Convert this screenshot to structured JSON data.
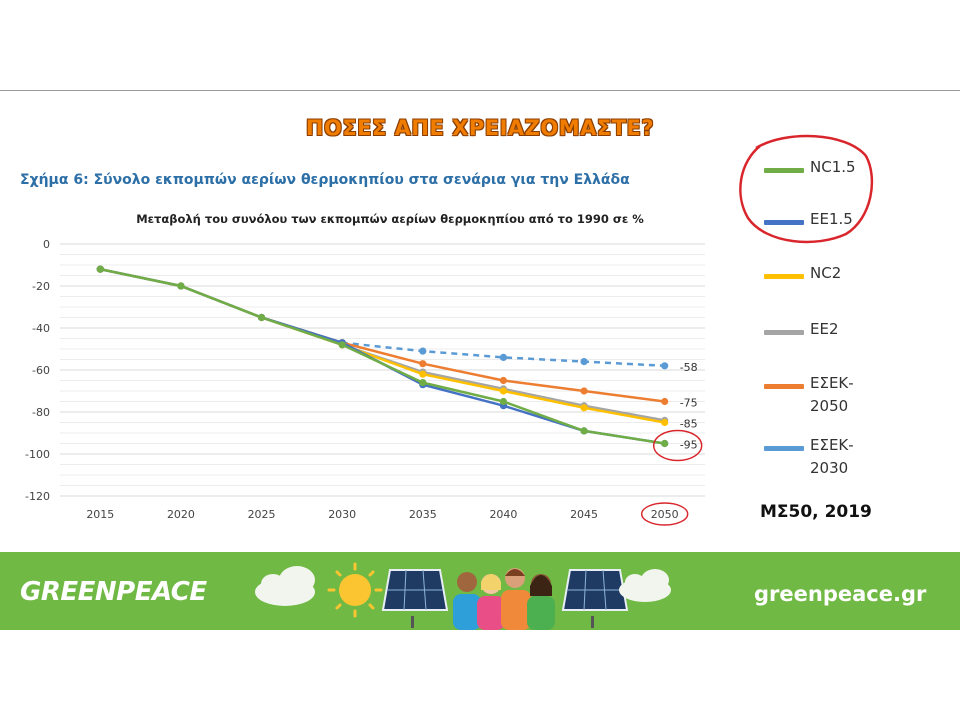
{
  "slide": {
    "title": "ΠΟΣΕΣ ΑΠΕ ΧΡΕΙΑΖΟΜΑΣΤΕ?",
    "figure_caption": "Σχήμα 6: Σύνολο εκπομπών αερίων θερμοκηπίου στα σενάρια για την Ελλάδα",
    "source": "ΜΣ50, 2019",
    "highlight_color": "#d9262c"
  },
  "footer": {
    "logo": "GREENPEACE",
    "url": "greenpeace.gr",
    "background": "#70b944"
  },
  "chart_data": {
    "type": "line",
    "title": "Μεταβολή του συνόλου των εκπομπών αερίων θερμοκηπίου από το 1990 σε %",
    "xlabel": "",
    "ylabel": "",
    "x": [
      2015,
      2020,
      2025,
      2030,
      2035,
      2040,
      2045,
      2050
    ],
    "ylim": [
      -120,
      0
    ],
    "yticks": [
      0,
      -20,
      -40,
      -60,
      -80,
      -100,
      -120
    ],
    "grid": true,
    "legend_position": "right",
    "series": [
      {
        "name": "NC1.5",
        "color": "#70ad47",
        "dashed": false,
        "values": [
          -12,
          -20,
          -35,
          -48,
          -66,
          -75,
          -89,
          -95
        ]
      },
      {
        "name": "EE1.5",
        "color": "#4472c4",
        "dashed": false,
        "values": [
          -12,
          -20,
          -35,
          -47,
          -67,
          -77,
          -89,
          -95
        ]
      },
      {
        "name": "NC2",
        "color": "#ffc000",
        "dashed": false,
        "values": [
          -12,
          -20,
          -35,
          -48,
          -62,
          -70,
          -78,
          -85
        ]
      },
      {
        "name": "EE2",
        "color": "#a5a5a5",
        "dashed": false,
        "values": [
          -12,
          -20,
          -35,
          -48,
          -61,
          -69,
          -77,
          -84
        ]
      },
      {
        "name": "ΕΣΕΚ-\n2050",
        "color": "#ed7d31",
        "dashed": false,
        "values": [
          -12,
          -20,
          -35,
          -47,
          -57,
          -65,
          -70,
          -75
        ]
      },
      {
        "name": "ΕΣΕΚ-\n2030",
        "color": "#5b9bd5",
        "dashed": true,
        "values": [
          -12,
          -20,
          -35,
          -47,
          -51,
          -54,
          -56,
          -58
        ]
      }
    ],
    "end_labels": [
      {
        "text": "-58",
        "value": -58
      },
      {
        "text": "-75",
        "value": -75
      },
      {
        "text": "-85",
        "value": -85
      },
      {
        "text": "-95",
        "value": -95
      }
    ],
    "circled_category": "2050",
    "circled_label": "-95"
  }
}
